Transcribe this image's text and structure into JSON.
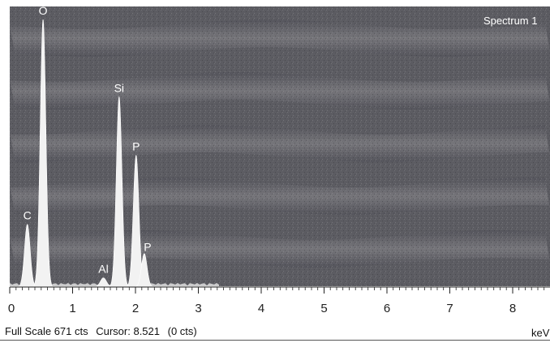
{
  "window": {
    "spectrum_label": "Spectrum 1"
  },
  "status": {
    "full_scale": "Full Scale 671 cts",
    "cursor": "Cursor: 8.521",
    "cursor_counts": "(0 cts)",
    "unit": "keV"
  },
  "colors": {
    "plot_background": "#5c5c62",
    "peak_fill": "#f2f2f2",
    "axis": "#222222"
  },
  "chart_data": {
    "type": "area",
    "title": "",
    "xlabel": "keV",
    "ylabel": "",
    "xlim": [
      0,
      8.5
    ],
    "ylim": [
      0,
      671
    ],
    "xticks": [
      0,
      1,
      2,
      3,
      4,
      5,
      6,
      7,
      8
    ],
    "xtick_labels": [
      "0",
      "1",
      "2",
      "3",
      "4",
      "5",
      "6",
      "7",
      "8"
    ],
    "grid": false,
    "legend": "none",
    "peaks": [
      {
        "label": "C",
        "energy": 0.28,
        "counts": 150
      },
      {
        "label": "O",
        "energy": 0.53,
        "counts": 640
      },
      {
        "label": "Al",
        "energy": 1.49,
        "counts": 22
      },
      {
        "label": "Si",
        "energy": 1.74,
        "counts": 455
      },
      {
        "label": "P",
        "energy": 2.01,
        "counts": 315
      },
      {
        "label": "P",
        "energy": 2.14,
        "counts": 80
      }
    ]
  }
}
